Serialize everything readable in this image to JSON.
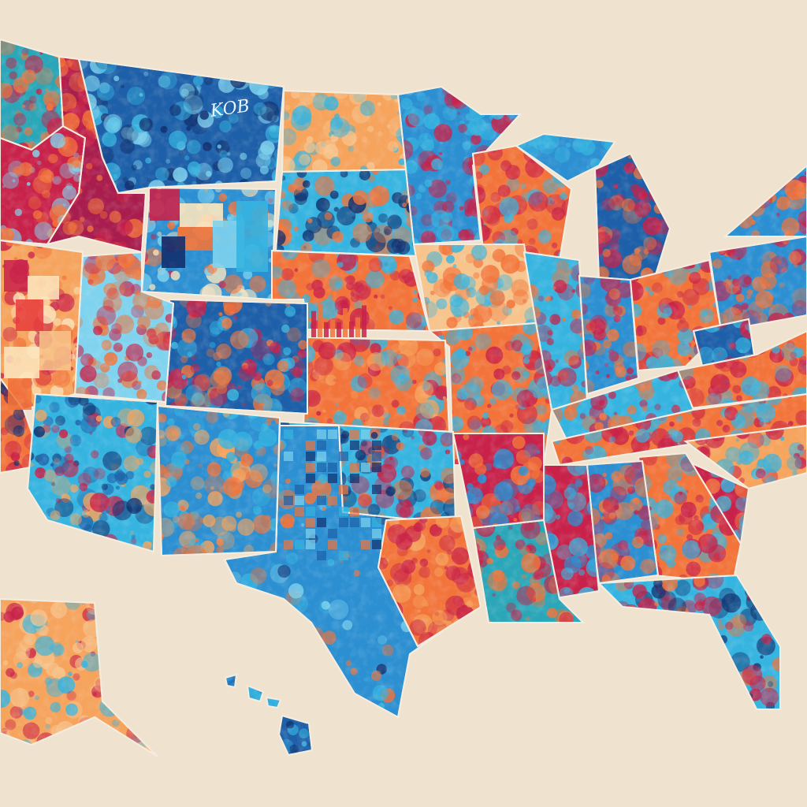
{
  "map": {
    "background": "#efe3cf",
    "border_color": "#f4ecdf",
    "palette": {
      "navy": "#12306e",
      "deep_blue": "#1d5fa8",
      "blue": "#2b8fd1",
      "cyan": "#36b4e0",
      "sky": "#7fd3ee",
      "teal": "#2aa6b8",
      "orange": "#f2743a",
      "light_orange": "#f6a35c",
      "peach": "#f7c48c",
      "cream": "#fbe6bf",
      "crimson": "#c8224a",
      "magenta": "#a81d4d",
      "red": "#e63c3c"
    },
    "visible_text": [
      "KOB"
    ]
  }
}
